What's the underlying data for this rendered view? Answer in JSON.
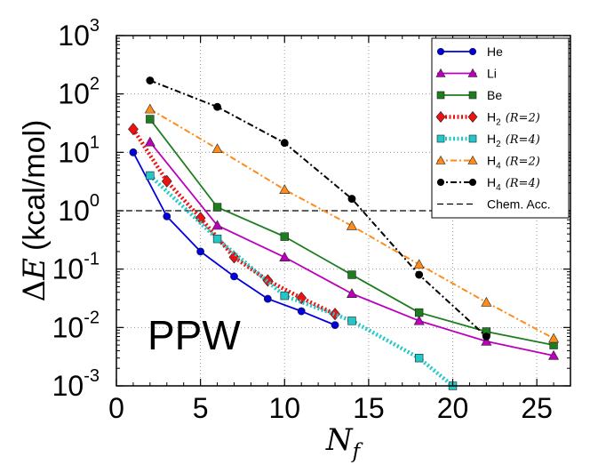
{
  "chart_data": {
    "type": "line",
    "annotation": "PPW",
    "xlabel_base": "N",
    "xlabel_sub": "f",
    "ylabel_prefix": "Δ",
    "ylabel_var": "E",
    "ylabel_unit": "(kcal/mol)",
    "xlim": [
      0,
      27
    ],
    "ylim": [
      0.001,
      1000
    ],
    "yscale": "log",
    "grid": true,
    "legend_position": "top-right",
    "xticks": [
      0,
      5,
      10,
      15,
      20,
      25
    ],
    "yticks": [
      {
        "base": "10",
        "exp": "-3",
        "value": 0.001
      },
      {
        "base": "10",
        "exp": "-2",
        "value": 0.01
      },
      {
        "base": "10",
        "exp": "-1",
        "value": 0.1
      },
      {
        "base": "10",
        "exp": "0",
        "value": 1
      },
      {
        "base": "10",
        "exp": "1",
        "value": 10
      },
      {
        "base": "10",
        "exp": "2",
        "value": 100
      },
      {
        "base": "10",
        "exp": "3",
        "value": 1000
      }
    ],
    "series": [
      {
        "label": "He",
        "label_sub": "",
        "label_math": "",
        "color": "#0000dd",
        "marker": "circle",
        "line": "solid",
        "x": [
          1,
          3,
          5,
          7,
          9,
          11,
          13
        ],
        "y": [
          10,
          0.8,
          0.2,
          0.075,
          0.031,
          0.019,
          0.011
        ]
      },
      {
        "label": "Li",
        "label_sub": "",
        "label_math": "",
        "color": "#bb00bb",
        "marker": "triangle",
        "line": "solid",
        "x": [
          2,
          6,
          10,
          14,
          18,
          22,
          26
        ],
        "y": [
          15,
          0.56,
          0.16,
          0.038,
          0.013,
          0.0058,
          0.0033
        ]
      },
      {
        "label": "Be",
        "label_sub": "",
        "label_math": "",
        "color": "#1e7d1e",
        "marker": "square",
        "line": "solid",
        "x": [
          2,
          6,
          10,
          14,
          18,
          22,
          26
        ],
        "y": [
          37,
          1.15,
          0.36,
          0.08,
          0.018,
          0.0085,
          0.005
        ]
      },
      {
        "label": "H",
        "label_sub": "2",
        "label_math": "(R=2)",
        "color": "#ee1111",
        "marker": "diamond",
        "line": "dotted-thick",
        "x": [
          1,
          3,
          5,
          7,
          9,
          11,
          13
        ],
        "y": [
          25,
          3.2,
          0.75,
          0.16,
          0.064,
          0.032,
          0.017
        ]
      },
      {
        "label": "H",
        "label_sub": "2",
        "label_math": "(R=4)",
        "color": "#22c8c8",
        "marker": "square",
        "line": "dotted-thick",
        "x": [
          2,
          6,
          10,
          14,
          18,
          20
        ],
        "y": [
          4,
          0.33,
          0.035,
          0.013,
          0.003,
          0.001
        ]
      },
      {
        "label": "H",
        "label_sub": "4",
        "label_math": "(R=2)",
        "color": "#ff8c1a",
        "marker": "triangle",
        "line": "dashdot",
        "x": [
          2,
          6,
          10,
          14,
          18,
          22,
          26
        ],
        "y": [
          55,
          11.5,
          2.3,
          0.55,
          0.12,
          0.027,
          0.0065
        ]
      },
      {
        "label": "H",
        "label_sub": "4",
        "label_math": "(R=4)",
        "color": "#000000",
        "marker": "circle",
        "line": "dashdot",
        "x": [
          2,
          6,
          10,
          14,
          18,
          22
        ],
        "y": [
          170,
          60,
          14.5,
          1.6,
          0.08,
          0.007
        ]
      }
    ],
    "reference_line": {
      "label": "Chem. Acc.",
      "y": 1.0,
      "color": "#000000",
      "line": "dashed"
    }
  }
}
